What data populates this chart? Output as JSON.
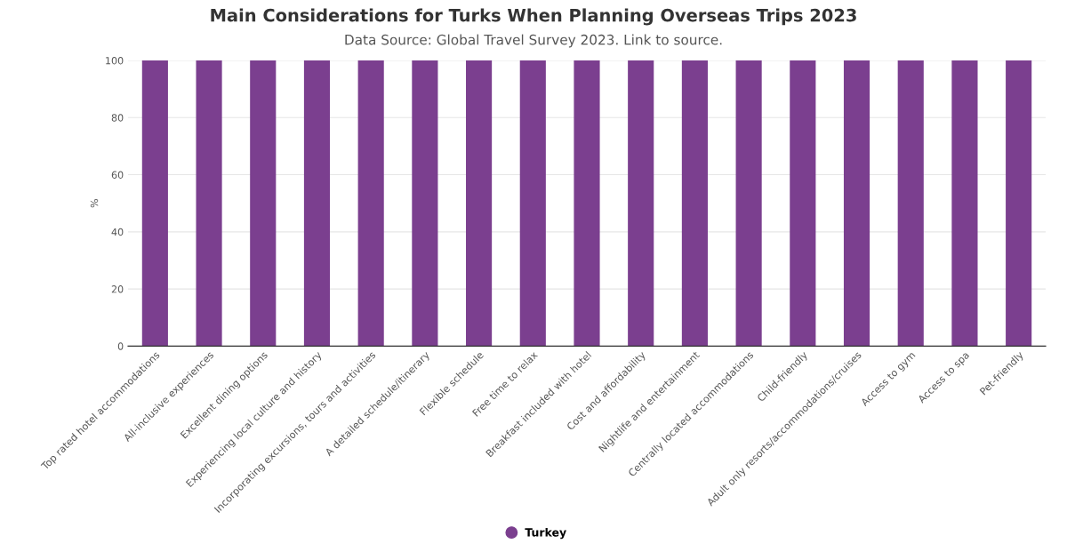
{
  "chart_data": {
    "type": "bar",
    "title": "Main Considerations for Turks When Planning Overseas Trips 2023",
    "subtitle": "Data Source: Global Travel Survey 2023. Link to source.",
    "ylabel": "%",
    "categories": [
      "Top rated hotel accommodations",
      "All-inclusive experiences",
      "Excellent dining options",
      "Experiencing local culture and history",
      "Incorporating excursions, tours and activities",
      "A detailed schedule/itinerary",
      "Flexible schedule",
      "Free time to relax",
      "Breakfast included with hotel",
      "Cost and affordability",
      "Nightlife and entertainment",
      "Centrally located accommodations",
      "Child-friendly",
      "Adult only resorts/accommodations/cruises",
      "Access to gym",
      "Access to spa",
      "Pet-friendly"
    ],
    "series": [
      {
        "name": "Turkey",
        "color": "#7b3f8f",
        "values": [
          100,
          100,
          100,
          100,
          100,
          100,
          100,
          100,
          100,
          100,
          100,
          100,
          100,
          100,
          100,
          100,
          100
        ]
      }
    ],
    "ylim": [
      0,
      100
    ],
    "yticks": [
      0,
      20,
      40,
      60,
      80,
      100
    ],
    "grid": "y",
    "legend": "bottom"
  }
}
